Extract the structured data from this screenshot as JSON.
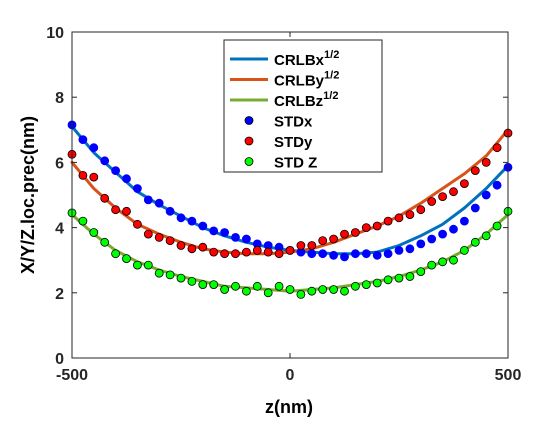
{
  "chart_data": {
    "type": "scatter",
    "title": "",
    "xlabel": "z(nm)",
    "ylabel": "X/Y/Z.loc.prec(nm)",
    "xlim": [
      -500,
      500
    ],
    "ylim": [
      0,
      10
    ],
    "xticks": [
      -500,
      0,
      500
    ],
    "yticks": [
      0,
      2,
      4,
      6,
      8,
      10
    ],
    "grid": false,
    "legend_position": "top-center",
    "legend": [
      {
        "label": "CRLBx",
        "sup": "1/2",
        "kind": "line",
        "color": "#0072BD"
      },
      {
        "label": "CRLBy",
        "sup": "1/2",
        "kind": "line",
        "color": "#D95319"
      },
      {
        "label": "CRLBz",
        "sup": "1/2",
        "kind": "line",
        "color": "#77AC30"
      },
      {
        "label": "STDx",
        "sup": "",
        "kind": "marker",
        "color": "#0000FF"
      },
      {
        "label": "STDy",
        "sup": "",
        "kind": "marker",
        "color": "#FF0000"
      },
      {
        "label": "STD Z",
        "sup": "",
        "kind": "marker",
        "color": "#00FF00"
      }
    ],
    "lines": [
      {
        "name": "CRLBx",
        "color": "#0072BD",
        "x": [
          -500,
          -450,
          -400,
          -350,
          -300,
          -250,
          -200,
          -150,
          -100,
          -50,
          0,
          50,
          100,
          150,
          200,
          250,
          300,
          350,
          400,
          450,
          500
        ],
        "y": [
          7.1,
          6.3,
          5.7,
          5.1,
          4.7,
          4.35,
          4.0,
          3.75,
          3.55,
          3.4,
          3.3,
          3.25,
          3.2,
          3.2,
          3.25,
          3.45,
          3.75,
          4.1,
          4.6,
          5.2,
          5.9
        ]
      },
      {
        "name": "CRLBy",
        "color": "#D95319",
        "x": [
          -500,
          -450,
          -400,
          -350,
          -300,
          -250,
          -200,
          -150,
          -100,
          -50,
          0,
          50,
          100,
          150,
          200,
          250,
          300,
          350,
          400,
          450,
          500
        ],
        "y": [
          6.0,
          5.2,
          4.6,
          4.1,
          3.8,
          3.55,
          3.35,
          3.25,
          3.2,
          3.2,
          3.25,
          3.35,
          3.55,
          3.8,
          4.05,
          4.35,
          4.75,
          5.2,
          5.65,
          6.2,
          7.0
        ]
      },
      {
        "name": "CRLBz",
        "color": "#77AC30",
        "x": [
          -500,
          -450,
          -400,
          -350,
          -300,
          -250,
          -200,
          -150,
          -100,
          -50,
          0,
          50,
          100,
          150,
          200,
          250,
          300,
          350,
          400,
          450,
          500
        ],
        "y": [
          4.4,
          3.8,
          3.3,
          2.95,
          2.7,
          2.5,
          2.35,
          2.2,
          2.15,
          2.1,
          2.05,
          2.1,
          2.15,
          2.25,
          2.35,
          2.5,
          2.7,
          2.95,
          3.3,
          3.8,
          4.4
        ]
      }
    ],
    "series": [
      {
        "name": "STDx",
        "color": "#0000FF",
        "edge": "#0000FF",
        "x": [
          -500,
          -475,
          -450,
          -425,
          -400,
          -375,
          -350,
          -325,
          -300,
          -275,
          -250,
          -225,
          -200,
          -175,
          -150,
          -125,
          -100,
          -75,
          -50,
          -25,
          0,
          25,
          50,
          75,
          100,
          125,
          150,
          175,
          200,
          225,
          250,
          275,
          300,
          325,
          350,
          375,
          400,
          425,
          450,
          475,
          500
        ],
        "y": [
          7.15,
          6.7,
          6.45,
          6.05,
          5.75,
          5.5,
          5.2,
          4.85,
          4.75,
          4.5,
          4.3,
          4.2,
          4.05,
          3.9,
          3.85,
          3.7,
          3.65,
          3.5,
          3.45,
          3.4,
          3.3,
          3.25,
          3.2,
          3.2,
          3.15,
          3.1,
          3.2,
          3.2,
          3.15,
          3.2,
          3.3,
          3.35,
          3.5,
          3.65,
          3.8,
          3.95,
          4.2,
          4.6,
          5.0,
          5.3,
          5.85
        ]
      },
      {
        "name": "STDy",
        "color": "#FF0000",
        "edge": "#000000",
        "x": [
          -500,
          -475,
          -450,
          -425,
          -400,
          -375,
          -350,
          -325,
          -300,
          -275,
          -250,
          -225,
          -200,
          -175,
          -150,
          -125,
          -100,
          -75,
          -50,
          -25,
          0,
          25,
          50,
          75,
          100,
          125,
          150,
          175,
          200,
          225,
          250,
          275,
          300,
          325,
          350,
          375,
          400,
          425,
          450,
          475,
          500
        ],
        "y": [
          6.25,
          5.6,
          5.55,
          4.9,
          4.55,
          4.5,
          4.1,
          3.8,
          3.7,
          3.6,
          3.45,
          3.35,
          3.4,
          3.25,
          3.2,
          3.2,
          3.25,
          3.3,
          3.25,
          3.2,
          3.3,
          3.45,
          3.45,
          3.6,
          3.65,
          3.8,
          3.85,
          4.0,
          4.05,
          4.2,
          4.3,
          4.4,
          4.55,
          4.8,
          4.95,
          5.1,
          5.35,
          5.75,
          6.0,
          6.45,
          6.9
        ]
      },
      {
        "name": "STD Z",
        "color": "#00FF00",
        "edge": "#000000",
        "x": [
          -500,
          -475,
          -450,
          -425,
          -400,
          -375,
          -350,
          -325,
          -300,
          -275,
          -250,
          -225,
          -200,
          -175,
          -150,
          -125,
          -100,
          -75,
          -50,
          -25,
          0,
          25,
          50,
          75,
          100,
          125,
          150,
          175,
          200,
          225,
          250,
          275,
          300,
          325,
          350,
          375,
          400,
          425,
          450,
          475,
          500
        ],
        "y": [
          4.45,
          4.2,
          3.85,
          3.55,
          3.2,
          3.05,
          2.85,
          2.85,
          2.6,
          2.55,
          2.45,
          2.35,
          2.25,
          2.25,
          2.1,
          2.2,
          2.05,
          2.2,
          2.0,
          2.2,
          2.1,
          1.95,
          2.05,
          2.1,
          2.1,
          2.05,
          2.2,
          2.25,
          2.3,
          2.4,
          2.45,
          2.5,
          2.65,
          2.85,
          2.95,
          3.0,
          3.3,
          3.55,
          3.75,
          4.05,
          4.5
        ]
      }
    ]
  }
}
